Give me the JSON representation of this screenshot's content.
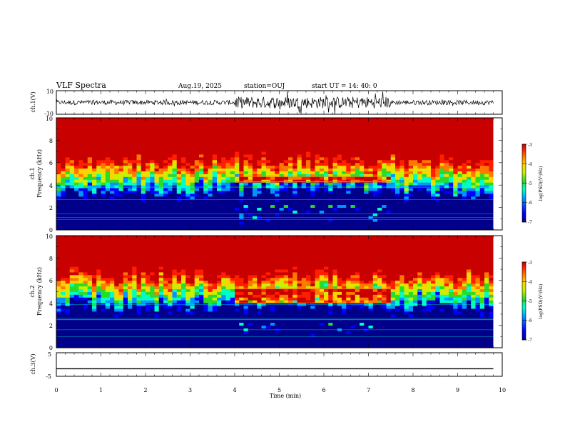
{
  "header": {
    "title": "VLF Spectra",
    "date": "Aug.19, 2025",
    "station": "station=OUJ",
    "start_ut": "start UT =   14: 40: 0"
  },
  "colors": {
    "spectrum": [
      "#00008a",
      "#0000ff",
      "#0096ff",
      "#00ffc8",
      "#28dc28",
      "#c8f000",
      "#ffd200",
      "#ff7800",
      "#ff1e00",
      "#c80000"
    ]
  },
  "chart_data": [
    {
      "type": "line",
      "panel": "waveform-ch1",
      "ylabel": "ch.1(V)",
      "y_ticks": [
        "10",
        "-10"
      ],
      "ylim": [
        -10,
        10
      ],
      "xlim": [
        0,
        10
      ],
      "x_end": 9.8,
      "baseline": 0,
      "amplitude_quiet": 2,
      "amplitude_active": 5,
      "active_interval": [
        4.0,
        7.5
      ]
    },
    {
      "type": "heatmap",
      "panel": "spectrogram-ch1",
      "ylabel_line1": "ch.1",
      "ylabel_line2": "Frequency (kHz)",
      "y_ticks": [
        "0",
        "2",
        "4",
        "6",
        "8",
        "10"
      ],
      "ylim": [
        0,
        10
      ],
      "xlim": [
        0,
        10
      ],
      "x_end": 9.8,
      "colorbar": {
        "label": "log(PSD)(V²/Hz)",
        "ticks": [
          "-3",
          "-4",
          "-5",
          "-6",
          "-7"
        ],
        "range": [
          -7,
          -3
        ]
      },
      "transition_freq_khz": 4.6,
      "active_interval": [
        4.0,
        7.5
      ],
      "active_band_khz": [
        4.3,
        4.8
      ]
    },
    {
      "type": "heatmap",
      "panel": "spectrogram-ch2",
      "ylabel_line1": "ch.2",
      "ylabel_line2": "Frequency (kHz)",
      "y_ticks": [
        "0",
        "2",
        "4",
        "6",
        "8",
        "10"
      ],
      "ylim": [
        0,
        10
      ],
      "xlim": [
        0,
        10
      ],
      "x_end": 9.8,
      "colorbar": {
        "label": "log(PSD)(V²/Hz)",
        "ticks": [
          "-3",
          "-4",
          "-5",
          "-6",
          "-7"
        ],
        "range": [
          -7,
          -3
        ]
      },
      "transition_freq_khz": 4.9,
      "active_interval": [
        4.0,
        7.5
      ],
      "active_band_khz": [
        4.0,
        5.3
      ]
    },
    {
      "type": "line",
      "panel": "waveform-ch3",
      "ylabel": "ch.3(V)",
      "y_ticks": [
        "5",
        "-5"
      ],
      "ylim": [
        -5,
        5
      ],
      "xlim": [
        0,
        10
      ],
      "x_end": 9.8,
      "baseline": -1.8,
      "amplitude_quiet": 0,
      "xlabel": "Time (min)",
      "x_ticks": [
        "0",
        "1",
        "2",
        "3",
        "4",
        "5",
        "6",
        "7",
        "8",
        "9",
        "10"
      ]
    }
  ]
}
